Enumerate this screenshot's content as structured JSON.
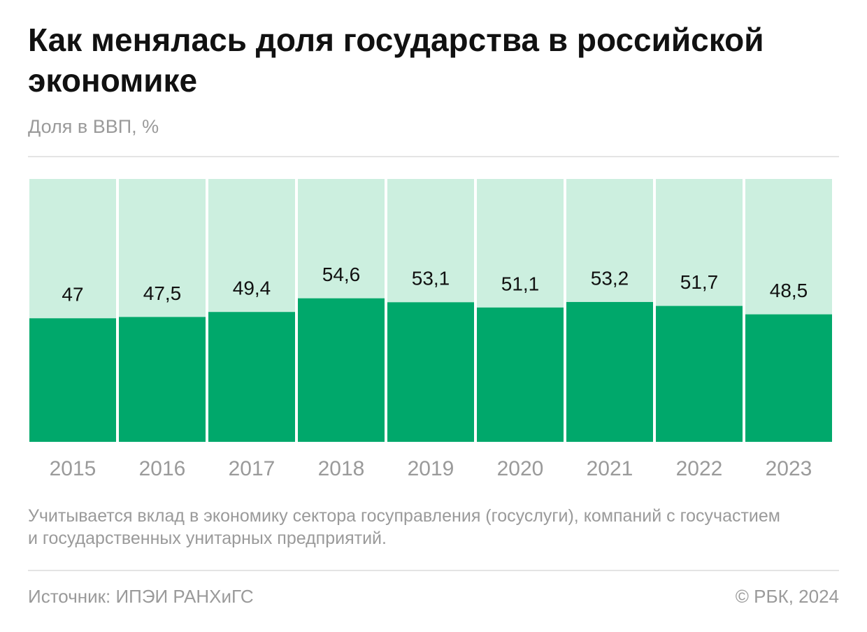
{
  "chart_data": {
    "type": "bar",
    "title": "Как менялась доля государства в российской экономике",
    "subtitle": "Доля в ВВП, %",
    "categories": [
      "2015",
      "2016",
      "2017",
      "2018",
      "2019",
      "2020",
      "2021",
      "2022",
      "2023"
    ],
    "values": [
      47,
      47.5,
      49.4,
      54.6,
      53.1,
      51.1,
      53.2,
      51.7,
      48.5
    ],
    "value_labels": [
      "47",
      "47,5",
      "49,4",
      "54,6",
      "53,1",
      "51,1",
      "53,2",
      "51,7",
      "48,5"
    ],
    "color": "#00a86b",
    "background_color": "#ccefdf",
    "ylim": [
      0,
      100
    ],
    "note": "Учитывается вклад в экономику сектора госуправления (госуслуги), компаний с госучастием и государственных унитарных предприятий.",
    "source": "Источник: ИПЭИ РАНХиГС",
    "copyright": "© РБК, 2024"
  }
}
